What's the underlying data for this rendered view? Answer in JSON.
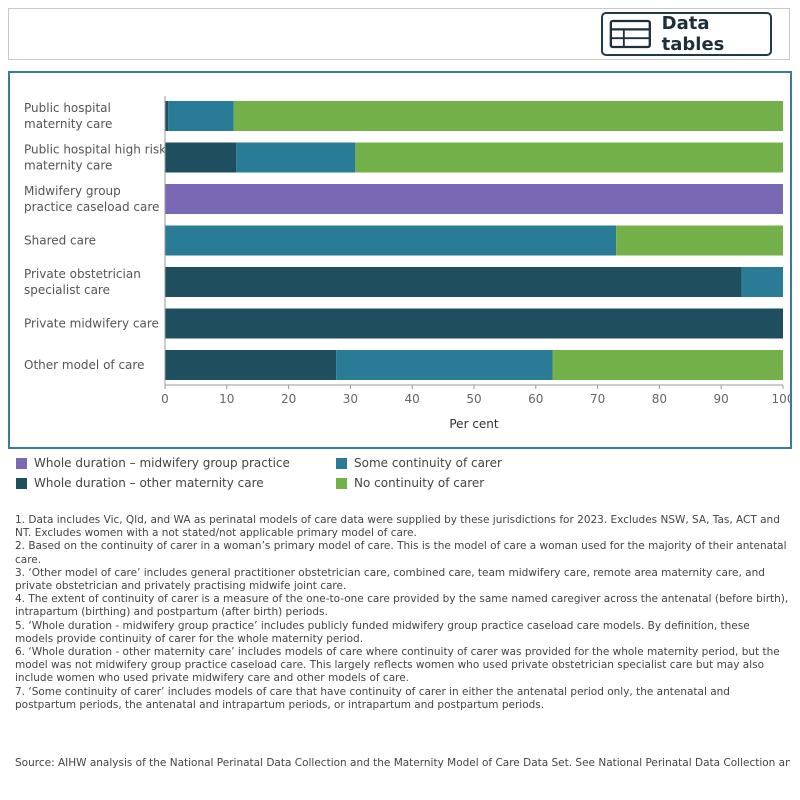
{
  "toolbar": {
    "data_tables_label": "Data tables",
    "data_tables_icon": "table-icon"
  },
  "chart_data": {
    "type": "bar",
    "orientation": "horizontal",
    "stacked": true,
    "categories": [
      [
        "Public hospital",
        "maternity care"
      ],
      [
        "Public hospital high risk",
        "maternity care"
      ],
      [
        "Midwifery group",
        "practice caseload care"
      ],
      [
        "Shared care"
      ],
      [
        "Private obstetrician",
        "specialist care"
      ],
      [
        "Private midwifery care"
      ],
      [
        "Other model of care"
      ]
    ],
    "series": [
      {
        "name": "Whole duration – midwifery group practice",
        "color": "#7b68b5",
        "values": [
          0,
          0,
          100,
          0,
          0,
          0,
          0
        ]
      },
      {
        "name": "Whole duration – other maternity care",
        "color": "#1f4e5f",
        "values": [
          0.5,
          11.5,
          0,
          0,
          93.3,
          100,
          27.7
        ]
      },
      {
        "name": "Some continuity of carer",
        "color": "#2a7b96",
        "values": [
          10.6,
          19.3,
          0,
          73,
          6.7,
          0,
          35
        ]
      },
      {
        "name": "No continuity of carer",
        "color": "#73b04a",
        "values": [
          88.9,
          69.2,
          0,
          27,
          0,
          0,
          37.3
        ]
      }
    ],
    "xlabel": "Per cent",
    "ylabel": "",
    "xlim": [
      0,
      100
    ],
    "xticks": [
      "0",
      "10",
      "20",
      "30",
      "40",
      "50",
      "60",
      "70",
      "80",
      "90",
      "100"
    ],
    "grid": false,
    "legend_position": "bottom"
  },
  "legend": {
    "items": [
      {
        "label": "Whole duration – midwifery group practice",
        "color": "#7b68b5"
      },
      {
        "label": "Some continuity of carer",
        "color": "#2a7b96"
      },
      {
        "label": "Whole duration – other maternity care",
        "color": "#1f4e5f"
      },
      {
        "label": "No continuity of carer",
        "color": "#73b04a"
      }
    ]
  },
  "notes": [
    "1. Data includes Vic, Qld, and WA as perinatal models of care data were supplied by these jurisdictions for 2023. Excludes NSW, SA, Tas, ACT and NT. Excludes women with a not stated/not applicable primary model of care.",
    "2. Based on the continuity of carer in a woman’s primary model of care. This is the model of care a woman used for the majority of their antenatal care.",
    "3. ‘Other model of care’ includes general practitioner obstetrician care, combined care, team midwifery care, remote area maternity care, and private obstetrician and privately practising midwife joint care.",
    "4. The extent of continuity of carer is a measure of the one-to-one care provided by the same named caregiver across the antenatal (before birth), intrapartum (birthing) and postpartum (after birth) periods.",
    "5. ‘Whole duration - midwifery group practice’ includes publicly funded midwifery group practice caseload care models. By definition, these models provide continuity of carer for the whole maternity period.",
    "6. ‘Whole duration - other maternity care’ includes models of care where continuity of carer was provided for the whole maternity period, but the model was not midwifery group practice caseload care. This largely reflects women who used private obstetrician specialist care but may also include women who used private midwifery care and other models of care.",
    "7. ‘Some continuity of carer’ includes models of care that have continuity of carer in either the antenatal period only, the antenatal and postpartum periods, the antenatal and intrapartum periods, or intrapartum and postpartum periods."
  ],
  "source": "Source: AIHW analysis of the National Perinatal Data Collection and the Maternity Model of Care Data Set. See National Perinatal Data Collection an.."
}
